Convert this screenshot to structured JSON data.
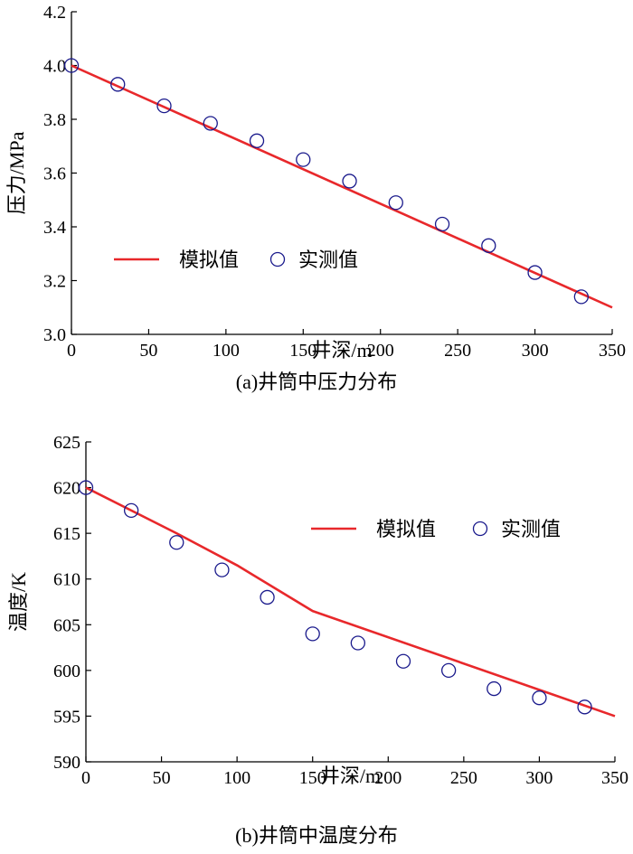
{
  "chart_data": [
    {
      "type": "line",
      "caption": "(a)井筒中压力分布",
      "xlabel": "井深/m",
      "ylabel": "压力/MPa",
      "xlim": [
        0,
        350
      ],
      "ylim": [
        3.0,
        4.2
      ],
      "xticks": [
        0,
        50,
        100,
        150,
        200,
        250,
        300,
        350
      ],
      "yticks": [
        3.0,
        3.2,
        3.4,
        3.6,
        3.8,
        4.0,
        4.2
      ],
      "ytick_decimals": 1,
      "legend_position": "lower-left",
      "series": [
        {
          "name": "模拟值",
          "kind": "line",
          "color": "#e8282b",
          "x": [
            0,
            350
          ],
          "y": [
            4.0,
            3.1
          ]
        },
        {
          "name": "实测值",
          "kind": "scatter",
          "marker": "open-circle",
          "color": "#1a1a8c",
          "x": [
            0,
            30,
            60,
            90,
            120,
            150,
            180,
            210,
            240,
            270,
            300,
            330
          ],
          "y": [
            4.0,
            3.93,
            3.85,
            3.785,
            3.72,
            3.65,
            3.57,
            3.49,
            3.41,
            3.33,
            3.23,
            3.14
          ]
        }
      ]
    },
    {
      "type": "line",
      "caption": "(b)井筒中温度分布",
      "xlabel": "井深/m",
      "ylabel": "温度/K",
      "xlim": [
        0,
        350
      ],
      "ylim": [
        590,
        625
      ],
      "xticks": [
        0,
        50,
        100,
        150,
        200,
        250,
        300,
        350
      ],
      "yticks": [
        590,
        595,
        600,
        605,
        610,
        615,
        620,
        625
      ],
      "ytick_decimals": 0,
      "legend_position": "top-right",
      "series": [
        {
          "name": "模拟值",
          "kind": "line",
          "color": "#e8282b",
          "x": [
            0,
            60,
            100,
            150,
            350
          ],
          "y": [
            620,
            615,
            611.5,
            606.5,
            595
          ]
        },
        {
          "name": "实测值",
          "kind": "scatter",
          "marker": "open-circle",
          "color": "#1a1a8c",
          "x": [
            0,
            30,
            60,
            90,
            120,
            150,
            180,
            210,
            240,
            270,
            300,
            330
          ],
          "y": [
            620,
            617.5,
            614,
            611,
            608,
            604,
            603,
            601,
            600,
            598,
            597,
            596
          ]
        }
      ]
    }
  ]
}
